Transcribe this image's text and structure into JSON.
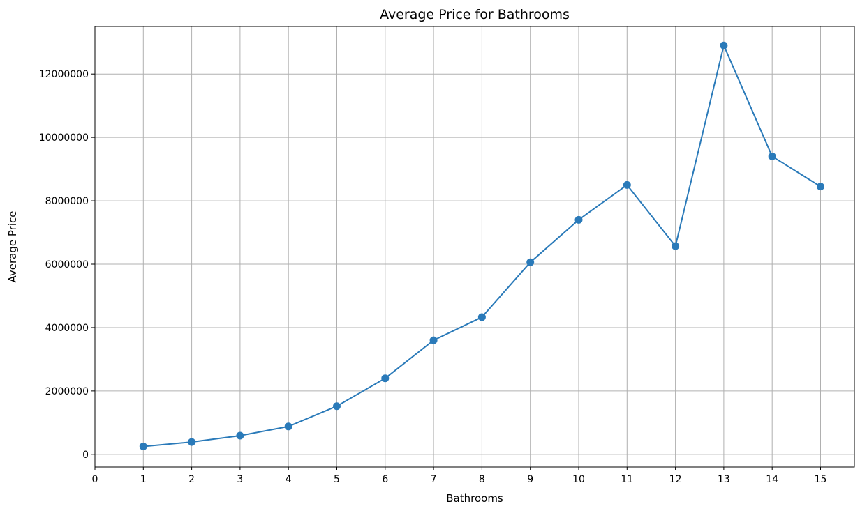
{
  "chart_data": {
    "type": "line",
    "title": "Average Price for Bathrooms",
    "xlabel": "Bathrooms",
    "ylabel": "Average Price",
    "xlim": [
      0,
      15.7
    ],
    "ylim": [
      -400000,
      13500000
    ],
    "xticks": [
      0,
      1,
      2,
      3,
      4,
      5,
      6,
      7,
      8,
      9,
      10,
      11,
      12,
      13,
      14,
      15
    ],
    "yticks": [
      0,
      2000000,
      4000000,
      6000000,
      8000000,
      10000000,
      12000000
    ],
    "ytick_labels": [
      "0",
      "2000000",
      "4000000",
      "6000000",
      "8000000",
      "10000000",
      "12000000"
    ],
    "grid": true,
    "series": [
      {
        "color": "#2a7ab9",
        "marker": "circle",
        "x": [
          1,
          2,
          3,
          4,
          5,
          6,
          7,
          8,
          9,
          10,
          11,
          12,
          13,
          14,
          15
        ],
        "y": [
          250000,
          390000,
          590000,
          880000,
          1520000,
          2400000,
          3600000,
          4330000,
          6060000,
          7400000,
          8500000,
          6570000,
          12900000,
          9400000,
          8450000
        ]
      }
    ]
  }
}
